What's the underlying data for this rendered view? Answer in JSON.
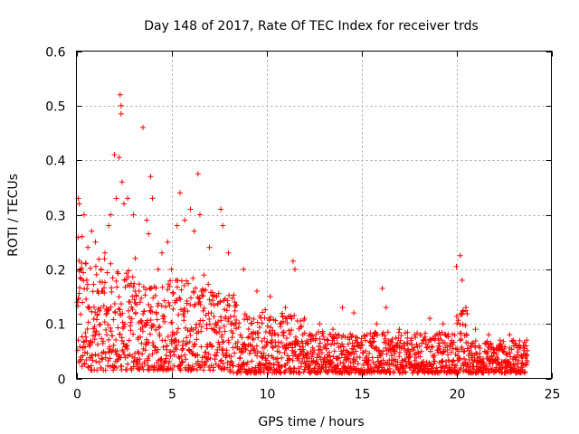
{
  "chart_data": {
    "type": "scatter",
    "title": "Day 148 of 2017, Rate Of TEC Index for receiver trds",
    "xlabel": "GPS time / hours",
    "ylabel": "ROTI / TECUs",
    "xlim": [
      0,
      25
    ],
    "ylim": [
      0,
      0.6
    ],
    "x_ticks": [
      0,
      5,
      10,
      15,
      20,
      25
    ],
    "x_tick_labels": [
      "0",
      "5",
      "10",
      "15",
      "20",
      "25"
    ],
    "y_ticks": [
      0,
      0.1,
      0.2,
      0.3,
      0.4,
      0.5,
      0.6
    ],
    "y_tick_labels": [
      "0",
      "0.1",
      "0.2",
      "0.3",
      "0.4",
      "0.5",
      "0.6"
    ],
    "grid": true,
    "marker": "+",
    "color": "#ff0000",
    "series": [
      {
        "name": "ROTI",
        "points": [
          [
            0.1,
            0.07
          ],
          [
            0.1,
            0.33
          ],
          [
            0.15,
            0.32
          ],
          [
            0.2,
            0.2
          ],
          [
            0.3,
            0.26
          ],
          [
            0.4,
            0.3
          ],
          [
            0.5,
            0.21
          ],
          [
            0.6,
            0.24
          ],
          [
            0.8,
            0.27
          ],
          [
            1.0,
            0.25
          ],
          [
            1.1,
            0.16
          ],
          [
            1.3,
            0.2
          ],
          [
            1.5,
            0.23
          ],
          [
            1.7,
            0.28
          ],
          [
            1.8,
            0.3
          ],
          [
            2.0,
            0.41
          ],
          [
            2.1,
            0.33
          ],
          [
            2.25,
            0.405
          ],
          [
            2.3,
            0.52
          ],
          [
            2.35,
            0.5
          ],
          [
            2.35,
            0.485
          ],
          [
            2.4,
            0.36
          ],
          [
            2.5,
            0.32
          ],
          [
            2.7,
            0.33
          ],
          [
            3.0,
            0.3
          ],
          [
            3.1,
            0.22
          ],
          [
            3.3,
            0.16
          ],
          [
            3.5,
            0.46
          ],
          [
            3.7,
            0.29
          ],
          [
            3.8,
            0.265
          ],
          [
            3.9,
            0.37
          ],
          [
            4.0,
            0.33
          ],
          [
            4.3,
            0.2
          ],
          [
            4.5,
            0.23
          ],
          [
            4.8,
            0.25
          ],
          [
            5.0,
            0.2
          ],
          [
            5.3,
            0.28
          ],
          [
            5.45,
            0.34
          ],
          [
            5.7,
            0.29
          ],
          [
            6.0,
            0.31
          ],
          [
            6.2,
            0.27
          ],
          [
            6.4,
            0.375
          ],
          [
            6.5,
            0.3
          ],
          [
            7.0,
            0.24
          ],
          [
            7.6,
            0.31
          ],
          [
            7.7,
            0.28
          ],
          [
            8.0,
            0.23
          ],
          [
            8.8,
            0.2
          ],
          [
            9.5,
            0.16
          ],
          [
            10.2,
            0.15
          ],
          [
            11.0,
            0.13
          ],
          [
            11.4,
            0.215
          ],
          [
            11.5,
            0.2
          ],
          [
            12.0,
            0.11
          ],
          [
            12.8,
            0.1
          ],
          [
            13.5,
            0.09
          ],
          [
            14.0,
            0.13
          ],
          [
            14.6,
            0.12
          ],
          [
            15.3,
            0.08
          ],
          [
            15.8,
            0.1
          ],
          [
            16.1,
            0.165
          ],
          [
            16.3,
            0.13
          ],
          [
            17.0,
            0.09
          ],
          [
            17.8,
            0.08
          ],
          [
            18.6,
            0.11
          ],
          [
            19.3,
            0.1
          ],
          [
            20.0,
            0.205
          ],
          [
            20.2,
            0.225
          ],
          [
            20.3,
            0.18
          ],
          [
            20.5,
            0.13
          ],
          [
            21.0,
            0.09
          ],
          [
            21.7,
            0.08
          ],
          [
            22.3,
            0.07
          ],
          [
            22.8,
            0.08
          ],
          [
            23.3,
            0.06
          ],
          [
            23.7,
            0.07
          ]
        ]
      }
    ]
  }
}
